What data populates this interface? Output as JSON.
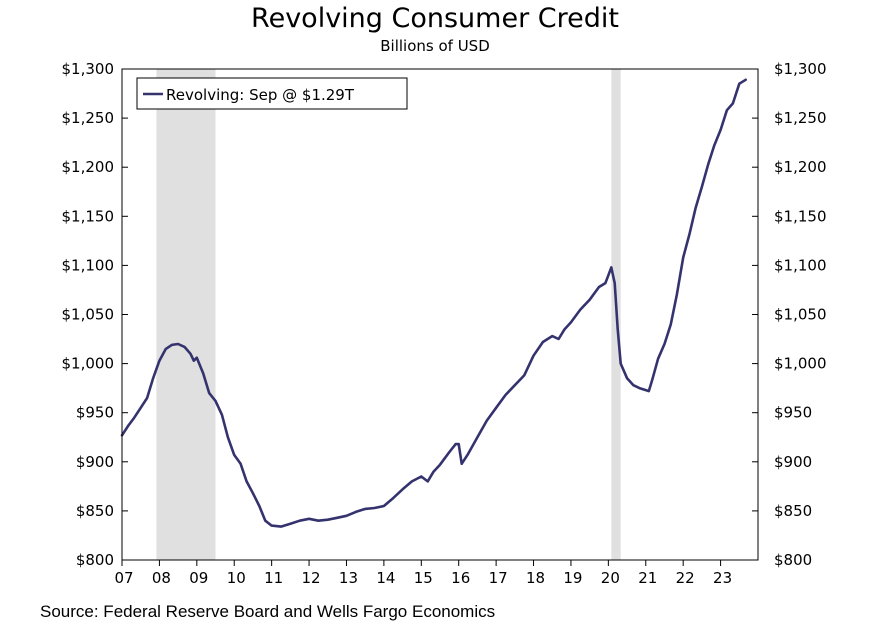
{
  "chart_data": {
    "type": "line",
    "title": "Revolving Consumer Credit",
    "subtitle": "Billions of USD",
    "source": "Source: Federal Reserve Board and Wells Fargo Economics",
    "ylim": [
      800,
      1300
    ],
    "yticks": [
      800,
      850,
      900,
      950,
      1000,
      1050,
      1100,
      1150,
      1200,
      1250,
      1300
    ],
    "ytick_labels": [
      "$800",
      "$850",
      "$900",
      "$950",
      "$1,000",
      "$1,050",
      "$1,100",
      "$1,150",
      "$1,200",
      "$1,250",
      "$1,300"
    ],
    "xlim": [
      2007.0,
      2024.0
    ],
    "xticks": [
      2007,
      2008,
      2009,
      2010,
      2011,
      2012,
      2013,
      2014,
      2015,
      2016,
      2017,
      2018,
      2019,
      2020,
      2021,
      2022,
      2023
    ],
    "xtick_labels": [
      "07",
      "08",
      "09",
      "10",
      "11",
      "12",
      "13",
      "14",
      "15",
      "16",
      "17",
      "18",
      "19",
      "20",
      "21",
      "22",
      "23"
    ],
    "recessions": [
      {
        "start": 2007.92,
        "end": 2009.5
      },
      {
        "start": 2020.08,
        "end": 2020.33
      }
    ],
    "recession_color": "#e0e0e0",
    "legend": "Revolving: Sep @ $1.29T",
    "legend_position": "top-left",
    "series": [
      {
        "name": "Revolving",
        "color": "#35336e",
        "points": [
          [
            2007.0,
            927
          ],
          [
            2007.17,
            937
          ],
          [
            2007.33,
            945
          ],
          [
            2007.5,
            955
          ],
          [
            2007.67,
            965
          ],
          [
            2007.83,
            985
          ],
          [
            2008.0,
            1003
          ],
          [
            2008.17,
            1015
          ],
          [
            2008.33,
            1019
          ],
          [
            2008.5,
            1020
          ],
          [
            2008.67,
            1017
          ],
          [
            2008.83,
            1010
          ],
          [
            2008.92,
            1003
          ],
          [
            2009.0,
            1006
          ],
          [
            2009.17,
            990
          ],
          [
            2009.33,
            970
          ],
          [
            2009.5,
            962
          ],
          [
            2009.67,
            948
          ],
          [
            2009.83,
            925
          ],
          [
            2010.0,
            907
          ],
          [
            2010.17,
            898
          ],
          [
            2010.33,
            880
          ],
          [
            2010.5,
            868
          ],
          [
            2010.67,
            855
          ],
          [
            2010.83,
            840
          ],
          [
            2011.0,
            835
          ],
          [
            2011.25,
            834
          ],
          [
            2011.5,
            837
          ],
          [
            2011.75,
            840
          ],
          [
            2012.0,
            842
          ],
          [
            2012.25,
            840
          ],
          [
            2012.5,
            841
          ],
          [
            2012.75,
            843
          ],
          [
            2013.0,
            845
          ],
          [
            2013.25,
            849
          ],
          [
            2013.5,
            852
          ],
          [
            2013.75,
            853
          ],
          [
            2014.0,
            855
          ],
          [
            2014.25,
            863
          ],
          [
            2014.5,
            872
          ],
          [
            2014.75,
            880
          ],
          [
            2015.0,
            885
          ],
          [
            2015.17,
            880
          ],
          [
            2015.33,
            890
          ],
          [
            2015.5,
            897
          ],
          [
            2015.75,
            910
          ],
          [
            2015.92,
            918
          ],
          [
            2016.0,
            918
          ],
          [
            2016.08,
            898
          ],
          [
            2016.25,
            908
          ],
          [
            2016.5,
            925
          ],
          [
            2016.75,
            942
          ],
          [
            2017.0,
            955
          ],
          [
            2017.25,
            968
          ],
          [
            2017.5,
            978
          ],
          [
            2017.75,
            988
          ],
          [
            2018.0,
            1008
          ],
          [
            2018.25,
            1022
          ],
          [
            2018.5,
            1028
          ],
          [
            2018.67,
            1025
          ],
          [
            2018.83,
            1035
          ],
          [
            2019.0,
            1042
          ],
          [
            2019.25,
            1055
          ],
          [
            2019.5,
            1065
          ],
          [
            2019.75,
            1078
          ],
          [
            2019.92,
            1082
          ],
          [
            2020.0,
            1090
          ],
          [
            2020.08,
            1098
          ],
          [
            2020.17,
            1082
          ],
          [
            2020.25,
            1035
          ],
          [
            2020.33,
            1000
          ],
          [
            2020.5,
            985
          ],
          [
            2020.67,
            978
          ],
          [
            2020.83,
            975
          ],
          [
            2021.0,
            973
          ],
          [
            2021.08,
            972
          ],
          [
            2021.17,
            983
          ],
          [
            2021.33,
            1005
          ],
          [
            2021.5,
            1020
          ],
          [
            2021.67,
            1040
          ],
          [
            2021.83,
            1070
          ],
          [
            2022.0,
            1108
          ],
          [
            2022.17,
            1132
          ],
          [
            2022.33,
            1158
          ],
          [
            2022.5,
            1180
          ],
          [
            2022.67,
            1203
          ],
          [
            2022.83,
            1222
          ],
          [
            2023.0,
            1238
          ],
          [
            2023.17,
            1258
          ],
          [
            2023.33,
            1265
          ],
          [
            2023.5,
            1285
          ],
          [
            2023.67,
            1289
          ]
        ]
      }
    ]
  }
}
